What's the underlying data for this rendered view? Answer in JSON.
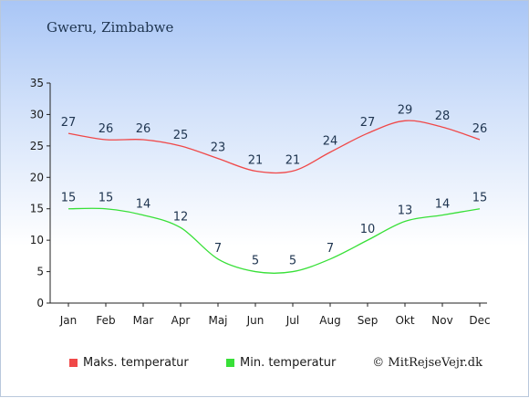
{
  "chart_data": {
    "type": "line",
    "title": "Gweru, Zimbabwe",
    "categories": [
      "Jan",
      "Feb",
      "Mar",
      "Apr",
      "Maj",
      "Jun",
      "Jul",
      "Aug",
      "Sep",
      "Okt",
      "Nov",
      "Dec"
    ],
    "series": [
      {
        "name": "Maks. temperatur",
        "color": "#f04848",
        "values": [
          27,
          26,
          26,
          25,
          23,
          21,
          21,
          24,
          27,
          29,
          28,
          26
        ]
      },
      {
        "name": "Min. temperatur",
        "color": "#38e038",
        "values": [
          15,
          15,
          14,
          12,
          7,
          5,
          5,
          7,
          10,
          13,
          14,
          15
        ]
      }
    ],
    "ylim": [
      0,
      35
    ],
    "yticks": [
      0,
      5,
      10,
      15,
      20,
      25,
      30,
      35
    ],
    "grid": false,
    "legend": "bottom",
    "credit": "© MitRejseVejr.dk"
  }
}
